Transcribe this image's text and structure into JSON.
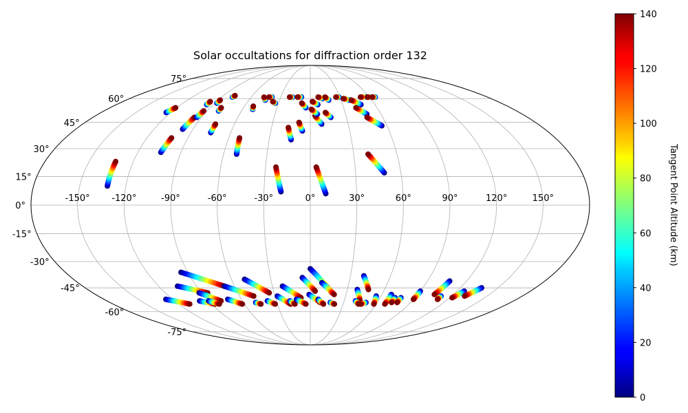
{
  "chart_data": {
    "type": "scatter",
    "projection": "mollweide",
    "title": "Solar occultations for diffraction order 132",
    "colorbar": {
      "label": "Tangent Point Altitude (km)",
      "range": [
        0,
        140
      ],
      "ticks": [
        0,
        20,
        40,
        60,
        80,
        100,
        120,
        140
      ],
      "colormap": "jet"
    },
    "grid": true,
    "lon_ticks": [
      -150,
      -120,
      -90,
      -60,
      -30,
      0,
      30,
      60,
      90,
      120,
      150
    ],
    "lat_ticks": [
      -75,
      -60,
      -45,
      -30,
      -15,
      0,
      15,
      30,
      45,
      60,
      75
    ],
    "lon_tick_labels": [
      "-150°",
      "-120°",
      "-90°",
      "-60°",
      "-30°",
      "0°",
      "30°",
      "60°",
      "90°",
      "120°",
      "150°"
    ],
    "lat_tick_labels": [
      "-75°",
      "-60°",
      "-45°",
      "-30°",
      "-15°",
      "0°",
      "15°",
      "30°",
      "45°",
      "60°",
      "75°"
    ],
    "tracks": [
      {
        "lon_start": -132,
        "lat_start": 10,
        "lon_end": -132,
        "lat_end": 23
      },
      {
        "lon_start": -124,
        "lat_start": 51,
        "lon_end": -121,
        "lat_end": 54
      },
      {
        "lon_start": -104,
        "lat_start": 28,
        "lon_end": -102,
        "lat_end": 36
      },
      {
        "lon_start": -98,
        "lat_start": 41,
        "lon_end": -96,
        "lat_end": 48
      },
      {
        "lon_start": -94,
        "lat_start": 48,
        "lon_end": -93,
        "lat_end": 52
      },
      {
        "lon_start": -96,
        "lat_start": 56,
        "lon_end": -96,
        "lat_end": 58
      },
      {
        "lon_start": -88,
        "lat_start": 57,
        "lon_end": -88,
        "lat_end": 59
      },
      {
        "lon_start": -80,
        "lat_start": 52,
        "lon_end": -80,
        "lat_end": 54
      },
      {
        "lon_start": -75,
        "lat_start": 39,
        "lon_end": -75,
        "lat_end": 44
      },
      {
        "lon_start": -79,
        "lat_start": 61,
        "lon_end": -78,
        "lat_end": 62
      },
      {
        "lon_start": -51,
        "lat_start": 27,
        "lon_end": -52,
        "lat_end": 36
      },
      {
        "lon_start": -51,
        "lat_start": 53,
        "lon_end": -52,
        "lat_end": 55
      },
      {
        "lon_start": -44,
        "lat_start": 59,
        "lon_end": -47,
        "lat_end": 61
      },
      {
        "lon_start": -39,
        "lat_start": 61,
        "lon_end": -42,
        "lat_end": 61
      },
      {
        "lon_start": -33,
        "lat_start": 57,
        "lon_end": -36,
        "lat_end": 58
      },
      {
        "lon_start": -19,
        "lat_start": 7,
        "lon_end": -23,
        "lat_end": 20
      },
      {
        "lon_start": -14,
        "lat_start": 35,
        "lon_end": -17,
        "lat_end": 42
      },
      {
        "lon_start": -6,
        "lat_start": 40,
        "lon_end": -9,
        "lat_end": 45
      },
      {
        "lon_start": -4,
        "lat_start": 54,
        "lon_end": -8,
        "lat_end": 57
      },
      {
        "lon_start": -18,
        "lat_start": 61,
        "lon_end": -21,
        "lat_end": 61
      },
      {
        "lon_start": -9,
        "lat_start": 61,
        "lon_end": -13,
        "lat_end": 61
      },
      {
        "lon_start": 10,
        "lat_start": 6,
        "lon_end": 4,
        "lat_end": 20
      },
      {
        "lon_start": 9,
        "lat_start": 44,
        "lon_end": 4,
        "lat_end": 49
      },
      {
        "lon_start": 6,
        "lat_start": 50,
        "lon_end": 1,
        "lat_end": 53
      },
      {
        "lon_start": 7,
        "lat_start": 56,
        "lon_end": 2,
        "lat_end": 58
      },
      {
        "lon_start": 17,
        "lat_start": 48,
        "lon_end": 13,
        "lat_end": 51
      },
      {
        "lon_start": 12,
        "lat_start": 60,
        "lon_end": 8,
        "lat_end": 61
      },
      {
        "lon_start": 18,
        "lat_start": 59,
        "lon_end": 15,
        "lat_end": 61
      },
      {
        "lon_start": 29,
        "lat_start": 61,
        "lon_end": 26,
        "lat_end": 61
      },
      {
        "lon_start": 38,
        "lat_start": 59,
        "lon_end": 33,
        "lat_end": 60
      },
      {
        "lon_start": 47,
        "lat_start": 56,
        "lon_end": 40,
        "lat_end": 59
      },
      {
        "lon_start": 49,
        "lat_start": 17,
        "lon_end": 40,
        "lat_end": 27
      },
      {
        "lon_start": 48,
        "lat_start": 50,
        "lon_end": 41,
        "lat_end": 54
      },
      {
        "lon_start": 56,
        "lat_start": 43,
        "lon_end": 47,
        "lat_end": 48
      },
      {
        "lon_start": 57,
        "lat_start": 61,
        "lon_end": 51,
        "lat_end": 61
      },
      {
        "lon_start": 62,
        "lat_start": 61,
        "lon_end": 58,
        "lat_end": 61
      },
      {
        "lon_start": 66,
        "lat_start": 61,
        "lon_end": 63,
        "lat_end": 61
      },
      {
        "lon_start": -95,
        "lat_start": -36,
        "lon_end": -68,
        "lat_end": -44
      },
      {
        "lon_start": -105,
        "lat_start": -44,
        "lon_end": -85,
        "lat_end": -48
      },
      {
        "lon_start": -126,
        "lat_start": -52,
        "lon_end": -110,
        "lat_end": -55
      },
      {
        "lon_start": -92,
        "lat_start": -48,
        "lon_end": -79,
        "lat_end": -53
      },
      {
        "lon_start": -98,
        "lat_start": -53,
        "lon_end": -87,
        "lat_end": -55
      },
      {
        "lon_start": -90,
        "lat_start": -53,
        "lon_end": -83,
        "lat_end": -55
      },
      {
        "lon_start": -68,
        "lat_start": -44,
        "lon_end": -48,
        "lat_end": -50
      },
      {
        "lon_start": -72,
        "lat_start": -52,
        "lon_end": -62,
        "lat_end": -55
      },
      {
        "lon_start": -50,
        "lat_start": -40,
        "lon_end": -34,
        "lat_end": -48
      },
      {
        "lon_start": -49,
        "lat_start": -54,
        "lon_end": -45,
        "lat_end": -55
      },
      {
        "lon_start": -38,
        "lat_start": -53,
        "lon_end": -32,
        "lat_end": -55
      },
      {
        "lon_start": -28,
        "lat_start": -50,
        "lon_end": -18,
        "lat_end": -55
      },
      {
        "lon_start": -22,
        "lat_start": -44,
        "lon_end": -8,
        "lat_end": -51
      },
      {
        "lon_start": -18,
        "lat_start": -53,
        "lon_end": -14,
        "lat_end": -55
      },
      {
        "lon_start": -12,
        "lat_start": -52,
        "lon_end": -4,
        "lat_end": -55
      },
      {
        "lon_start": -6,
        "lat_start": -39,
        "lon_end": 4,
        "lat_end": -47
      },
      {
        "lon_start": 0,
        "lat_start": -34,
        "lon_end": 18,
        "lat_end": -48
      },
      {
        "lon_start": 9,
        "lat_start": -42,
        "lon_end": 20,
        "lat_end": -49
      },
      {
        "lon_start": -1,
        "lat_start": -49,
        "lon_end": 9,
        "lat_end": -54
      },
      {
        "lon_start": 7,
        "lat_start": -52,
        "lon_end": 12,
        "lat_end": -55
      },
      {
        "lon_start": 18,
        "lat_start": -54,
        "lon_end": 22,
        "lat_end": -55
      },
      {
        "lon_start": 40,
        "lat_start": -38,
        "lon_end": 47,
        "lat_end": -46
      },
      {
        "lon_start": 38,
        "lat_start": -46,
        "lon_end": 44,
        "lat_end": -53
      },
      {
        "lon_start": 40,
        "lat_start": -53,
        "lon_end": 44,
        "lat_end": -55
      },
      {
        "lon_start": 50,
        "lat_start": -54,
        "lon_end": 46,
        "lat_end": -55
      },
      {
        "lon_start": 56,
        "lat_start": -50,
        "lon_end": 58,
        "lat_end": -55
      },
      {
        "lon_start": 68,
        "lat_start": -49,
        "lon_end": 68,
        "lat_end": -55
      },
      {
        "lon_start": 73,
        "lat_start": -51,
        "lon_end": 73,
        "lat_end": -54
      },
      {
        "lon_start": 78,
        "lat_start": -51,
        "lon_end": 78,
        "lat_end": -54
      },
      {
        "lon_start": 90,
        "lat_start": -47,
        "lon_end": 90,
        "lat_end": -52
      },
      {
        "lon_start": 107,
        "lat_start": -41,
        "lon_end": 104,
        "lat_end": -49
      },
      {
        "lon_start": 111,
        "lat_start": -50,
        "lon_end": 111,
        "lat_end": -52
      },
      {
        "lon_start": 126,
        "lat_start": -47,
        "lon_end": 122,
        "lat_end": -51
      },
      {
        "lon_start": 137,
        "lat_start": -45,
        "lon_end": 131,
        "lat_end": -50
      }
    ]
  }
}
